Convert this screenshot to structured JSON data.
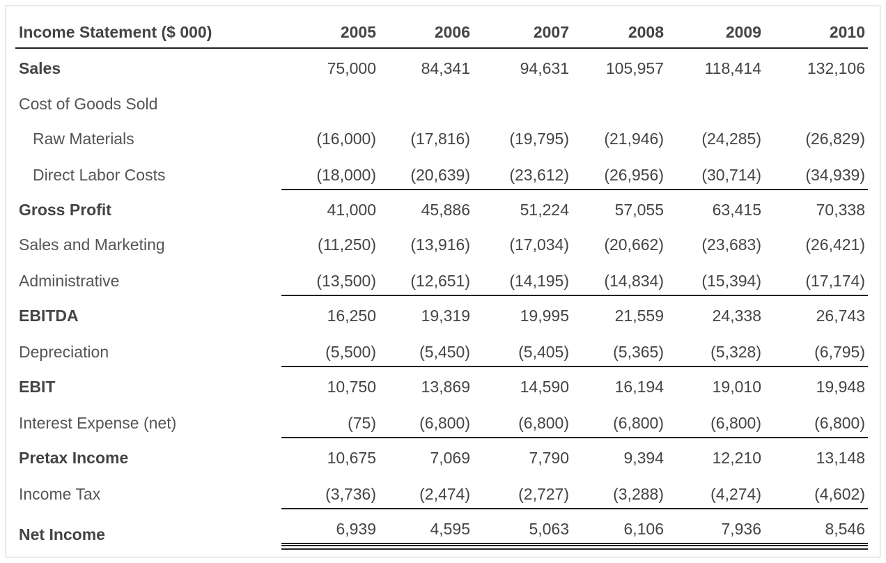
{
  "table": {
    "title": "Income Statement ($ 000)",
    "years": [
      "2005",
      "2006",
      "2007",
      "2008",
      "2009",
      "2010"
    ],
    "rows": [
      {
        "label": "Sales",
        "bold": true,
        "values": [
          "75,000",
          "84,341",
          "94,631",
          "105,957",
          "118,414",
          "132,106"
        ]
      },
      {
        "label": "Cost of Goods Sold"
      },
      {
        "label": "Raw Materials",
        "indent": true,
        "values": [
          "(16,000)",
          "(17,816)",
          "(19,795)",
          "(21,946)",
          "(24,285)",
          "(26,829)"
        ]
      },
      {
        "label": "Direct Labor Costs",
        "indent": true,
        "underline": "single",
        "values": [
          "(18,000)",
          "(20,639)",
          "(23,612)",
          "(26,956)",
          "(30,714)",
          "(34,939)"
        ]
      },
      {
        "label": "Gross Profit",
        "bold": true,
        "values": [
          "41,000",
          "45,886",
          "51,224",
          "57,055",
          "63,415",
          "70,338"
        ]
      },
      {
        "label": "Sales and Marketing",
        "values": [
          "(11,250)",
          "(13,916)",
          "(17,034)",
          "(20,662)",
          "(23,683)",
          "(26,421)"
        ]
      },
      {
        "label": "Administrative",
        "underline": "single",
        "values": [
          "(13,500)",
          "(12,651)",
          "(14,195)",
          "(14,834)",
          "(15,394)",
          "(17,174)"
        ]
      },
      {
        "label": "EBITDA",
        "bold": true,
        "values": [
          "16,250",
          "19,319",
          "19,995",
          "21,559",
          "24,338",
          "26,743"
        ]
      },
      {
        "label": "Depreciation",
        "underline": "single",
        "values": [
          "(5,500)",
          "(5,450)",
          "(5,405)",
          "(5,365)",
          "(5,328)",
          "(6,795)"
        ]
      },
      {
        "label": "EBIT",
        "bold": true,
        "values": [
          "10,750",
          "13,869",
          "14,590",
          "16,194",
          "19,010",
          "19,948"
        ]
      },
      {
        "label": "Interest Expense (net)",
        "underline": "single",
        "values": [
          "(75)",
          "(6,800)",
          "(6,800)",
          "(6,800)",
          "(6,800)",
          "(6,800)"
        ]
      },
      {
        "label": "Pretax Income",
        "bold": true,
        "values": [
          "10,675",
          "7,069",
          "7,790",
          "9,394",
          "12,210",
          "13,148"
        ]
      },
      {
        "label": "Income Tax",
        "underline": "single",
        "values": [
          "(3,736)",
          "(2,474)",
          "(2,727)",
          "(3,288)",
          "(4,274)",
          "(4,602)"
        ]
      },
      {
        "label": "Net Income",
        "bold": true,
        "underline": "double",
        "values": [
          "6,939",
          "4,595",
          "5,063",
          "6,106",
          "7,936",
          "8,546"
        ]
      }
    ]
  }
}
